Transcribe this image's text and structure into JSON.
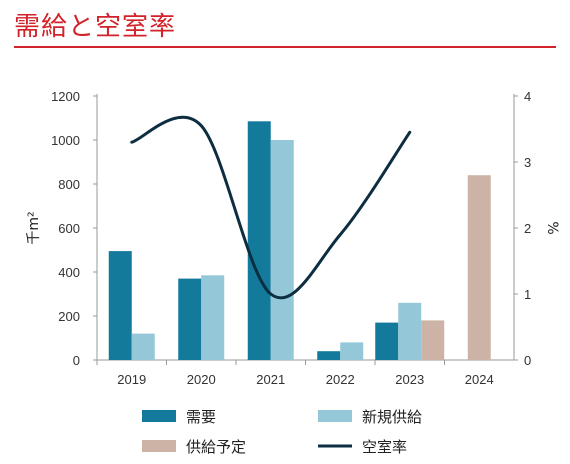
{
  "header": {
    "title": "需給と空室率"
  },
  "chart_data": {
    "type": "bar",
    "categories": [
      "2019",
      "2020",
      "2021",
      "2022",
      "2023",
      "2024"
    ],
    "series": [
      {
        "name": "需要",
        "kind": "bar",
        "axis": "left",
        "color": "#137a9c",
        "values": [
          495,
          370,
          1085,
          40,
          170,
          null
        ]
      },
      {
        "name": "新規供給",
        "kind": "bar",
        "axis": "left",
        "color": "#94c7d8",
        "values": [
          120,
          385,
          1000,
          80,
          260,
          null
        ]
      },
      {
        "name": "供給予定",
        "kind": "bar",
        "axis": "left",
        "color": "#cdb3a5",
        "values": [
          null,
          null,
          null,
          null,
          180,
          840
        ]
      },
      {
        "name": "空室率",
        "kind": "line",
        "axis": "right",
        "color": "#0d2d40",
        "values": [
          3.3,
          3.55,
          1.0,
          1.9,
          3.45,
          null
        ]
      }
    ],
    "ylabel": "千m²",
    "ylabel_right": "%",
    "ylim": [
      0,
      1200
    ],
    "y_ticks": [
      "0",
      "200",
      "400",
      "600",
      "800",
      "1000",
      "1200"
    ],
    "ylim_right": [
      0,
      4
    ],
    "y_ticks_right": [
      "0",
      "1",
      "2",
      "3",
      "4"
    ],
    "grid": false,
    "legend_position": "bottom"
  }
}
